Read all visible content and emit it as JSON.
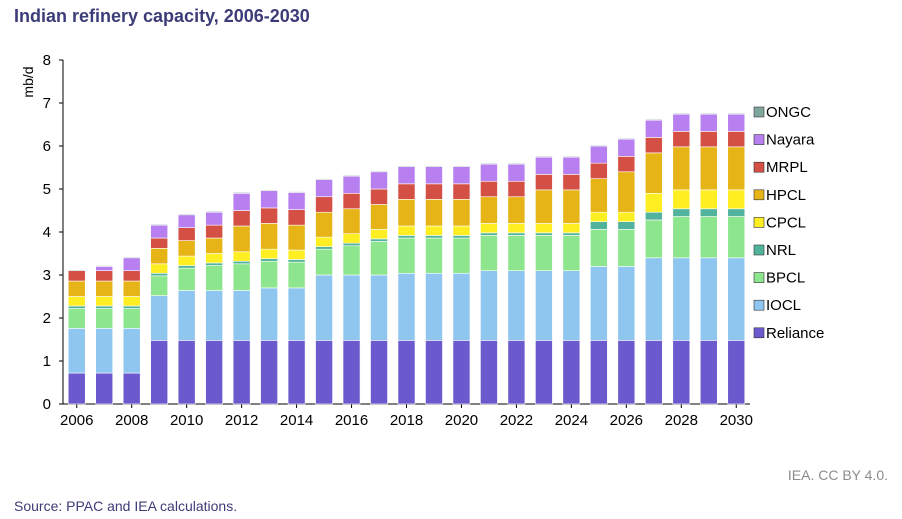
{
  "header": {
    "title": "Indian refinery capacity, 2006-2030"
  },
  "footer": {
    "credit": "IEA. CC BY 4.0.",
    "source": "Source: PPAC and IEA calculations."
  },
  "chart_data": {
    "type": "bar",
    "stacked": true,
    "ylabel": "mb/d",
    "ylim": [
      0,
      8
    ],
    "yticks": [
      0,
      1,
      2,
      3,
      4,
      5,
      6,
      7,
      8
    ],
    "grid": false,
    "legend_position": "right",
    "categories": [
      "2006",
      "2007",
      "2008",
      "2009",
      "2010",
      "2011",
      "2012",
      "2013",
      "2014",
      "2015",
      "2016",
      "2017",
      "2018",
      "2019",
      "2020",
      "2021",
      "2022",
      "2023",
      "2024",
      "2025",
      "2026",
      "2027",
      "2028",
      "2029",
      "2030"
    ],
    "xtick_labels": [
      "2006",
      "2008",
      "2010",
      "2012",
      "2014",
      "2016",
      "2018",
      "2020",
      "2022",
      "2024",
      "2026",
      "2028",
      "2030"
    ],
    "series": [
      {
        "name": "Reliance",
        "color": "#6a5acd",
        "values": [
          0.72,
          0.72,
          0.72,
          1.48,
          1.48,
          1.48,
          1.48,
          1.48,
          1.48,
          1.48,
          1.48,
          1.48,
          1.48,
          1.48,
          1.48,
          1.48,
          1.48,
          1.48,
          1.48,
          1.48,
          1.48,
          1.48,
          1.48,
          1.48,
          1.48
        ]
      },
      {
        "name": "IOCL",
        "color": "#8ec6ef",
        "values": [
          1.04,
          1.04,
          1.04,
          1.04,
          1.16,
          1.16,
          1.16,
          1.22,
          1.22,
          1.52,
          1.52,
          1.52,
          1.56,
          1.56,
          1.56,
          1.62,
          1.62,
          1.62,
          1.62,
          1.72,
          1.72,
          1.92,
          1.92,
          1.92,
          1.92
        ]
      },
      {
        "name": "BPCL",
        "color": "#8de68d",
        "values": [
          0.46,
          0.46,
          0.46,
          0.46,
          0.52,
          0.58,
          0.62,
          0.62,
          0.6,
          0.6,
          0.68,
          0.78,
          0.82,
          0.82,
          0.82,
          0.82,
          0.82,
          0.82,
          0.82,
          0.86,
          0.86,
          0.88,
          0.96,
          0.96,
          0.96
        ]
      },
      {
        "name": "NRL",
        "color": "#52b39c",
        "values": [
          0.06,
          0.06,
          0.06,
          0.06,
          0.06,
          0.06,
          0.06,
          0.06,
          0.06,
          0.06,
          0.06,
          0.06,
          0.06,
          0.06,
          0.06,
          0.06,
          0.06,
          0.06,
          0.06,
          0.18,
          0.18,
          0.18,
          0.18,
          0.18,
          0.18
        ]
      },
      {
        "name": "CPCL",
        "color": "#ffee22",
        "values": [
          0.22,
          0.22,
          0.22,
          0.22,
          0.22,
          0.22,
          0.22,
          0.22,
          0.22,
          0.22,
          0.22,
          0.22,
          0.22,
          0.22,
          0.22,
          0.22,
          0.22,
          0.22,
          0.22,
          0.22,
          0.22,
          0.44,
          0.44,
          0.44,
          0.44
        ]
      },
      {
        "name": "HPCL",
        "color": "#e6b417",
        "values": [
          0.36,
          0.36,
          0.36,
          0.36,
          0.36,
          0.36,
          0.6,
          0.6,
          0.58,
          0.58,
          0.58,
          0.58,
          0.62,
          0.62,
          0.62,
          0.62,
          0.62,
          0.78,
          0.78,
          0.78,
          0.94,
          0.94,
          1.0,
          1.0,
          1.0
        ]
      },
      {
        "name": "MRPL",
        "color": "#d44f44",
        "values": [
          0.24,
          0.24,
          0.24,
          0.24,
          0.3,
          0.3,
          0.36,
          0.36,
          0.36,
          0.36,
          0.36,
          0.36,
          0.36,
          0.36,
          0.36,
          0.36,
          0.36,
          0.36,
          0.36,
          0.36,
          0.36,
          0.36,
          0.36,
          0.36,
          0.36
        ]
      },
      {
        "name": "Nayara",
        "color": "#b77ff0",
        "values": [
          0.0,
          0.1,
          0.3,
          0.3,
          0.3,
          0.3,
          0.4,
          0.4,
          0.4,
          0.4,
          0.4,
          0.4,
          0.4,
          0.4,
          0.4,
          0.4,
          0.4,
          0.4,
          0.4,
          0.4,
          0.4,
          0.4,
          0.4,
          0.4,
          0.4
        ]
      },
      {
        "name": "ONGC",
        "color": "#7fa69c",
        "values": [
          0.02,
          0.02,
          0.02,
          0.02,
          0.02,
          0.02,
          0.02,
          0.02,
          0.02,
          0.02,
          0.02,
          0.02,
          0.02,
          0.02,
          0.02,
          0.02,
          0.02,
          0.02,
          0.02,
          0.02,
          0.02,
          0.02,
          0.02,
          0.02,
          0.02
        ]
      }
    ]
  }
}
